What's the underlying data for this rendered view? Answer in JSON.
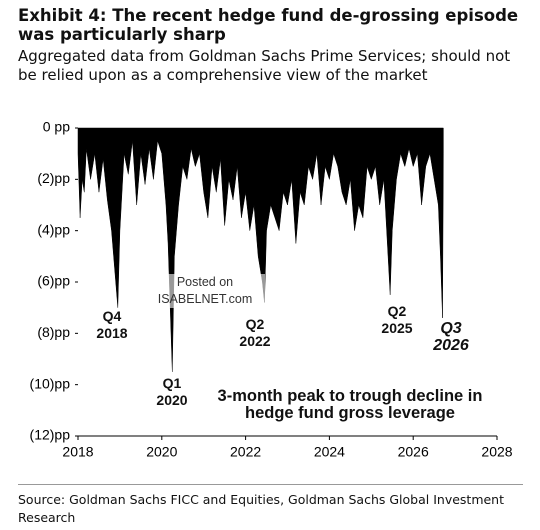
{
  "chart_data": {
    "type": "area",
    "title": "Exhibit 4: The recent hedge fund de-grossing episode was particularly sharp",
    "subtitle": "Aggregated data from Goldman Sachs Prime Services; should not be relied upon as a comprehensive view of the market",
    "source": "Source: Goldman Sachs FICC and Equities, Goldman Sachs Global Investment Research",
    "color": "#000000",
    "x": [
      2018.0,
      2018.05,
      2018.1,
      2018.15,
      2018.2,
      2018.3,
      2018.4,
      2018.5,
      2018.6,
      2018.7,
      2018.8,
      2018.9,
      2018.95,
      2019.0,
      2019.1,
      2019.2,
      2019.3,
      2019.4,
      2019.5,
      2019.6,
      2019.7,
      2019.8,
      2019.9,
      2020.0,
      2020.1,
      2020.15,
      2020.2,
      2020.25,
      2020.3,
      2020.4,
      2020.5,
      2020.6,
      2020.7,
      2020.8,
      2020.9,
      2021.0,
      2021.1,
      2021.2,
      2021.3,
      2021.4,
      2021.5,
      2021.6,
      2021.7,
      2021.8,
      2021.9,
      2022.0,
      2022.1,
      2022.2,
      2022.3,
      2022.4,
      2022.45,
      2022.5,
      2022.6,
      2022.7,
      2022.8,
      2022.9,
      2023.0,
      2023.1,
      2023.2,
      2023.3,
      2023.4,
      2023.5,
      2023.6,
      2023.7,
      2023.8,
      2023.9,
      2024.0,
      2024.1,
      2024.2,
      2024.3,
      2024.4,
      2024.5,
      2024.6,
      2024.7,
      2024.8,
      2024.9,
      2025.0,
      2025.1,
      2025.2,
      2025.3,
      2025.4,
      2025.45,
      2025.5,
      2025.6,
      2025.7,
      2025.8,
      2025.9,
      2026.0,
      2026.1,
      2026.2,
      2026.3,
      2026.4,
      2026.5,
      2026.6,
      2026.65,
      2026.7,
      2026.72
    ],
    "values": [
      -1,
      -3.5,
      -2,
      -2.5,
      -0.8,
      -2,
      -1,
      -2.5,
      -1.2,
      -2.8,
      -4,
      -6,
      -7,
      -4,
      -1,
      -1.8,
      -0.5,
      -3,
      -1,
      -2.2,
      -0.8,
      -2,
      -0.5,
      -1,
      -3,
      -4.5,
      -7,
      -9.5,
      -5,
      -3,
      -1.5,
      -2,
      -0.8,
      -1.5,
      -1,
      -2.5,
      -3.5,
      -1.5,
      -2.5,
      -1.2,
      -3.8,
      -2,
      -2.8,
      -1.5,
      -3.5,
      -2.5,
      -4,
      -3,
      -5,
      -6,
      -6.8,
      -4,
      -3,
      -3.5,
      -4,
      -2.5,
      -3,
      -2,
      -4.5,
      -2.5,
      -3,
      -1.5,
      -2,
      -1,
      -3,
      -1.5,
      -2,
      -1,
      -1.5,
      -2.5,
      -3,
      -2,
      -4,
      -3,
      -3.5,
      -1.5,
      -2,
      -1.5,
      -3,
      -2,
      -5,
      -6.5,
      -4,
      -2,
      -1,
      -1.5,
      -0.8,
      -1.5,
      -1,
      -3,
      -1.5,
      -1,
      -2,
      -3,
      -5,
      -7.4,
      -1
    ],
    "xlim": [
      2018,
      2028
    ],
    "xticks": [
      2018,
      2020,
      2022,
      2024,
      2026,
      2028
    ],
    "ylim": [
      -12,
      0
    ],
    "yticks": [
      {
        "value": 0,
        "label": "0 pp"
      },
      {
        "value": -2,
        "label": "(2)pp"
      },
      {
        "value": -4,
        "label": "(4)pp"
      },
      {
        "value": -6,
        "label": "(6)pp"
      },
      {
        "value": -8,
        "label": "(8)pp"
      },
      {
        "value": -10,
        "label": "(10)pp"
      },
      {
        "value": -12,
        "label": "(12)pp"
      }
    ],
    "annotations": [
      "Q4 2018",
      "Q1 2020",
      "Q2 2022",
      "Q2 2025",
      "Q3 2026",
      "3-month peak to trough decline in hedge fund gross leverage",
      "Posted on ISABELNET.com"
    ]
  }
}
